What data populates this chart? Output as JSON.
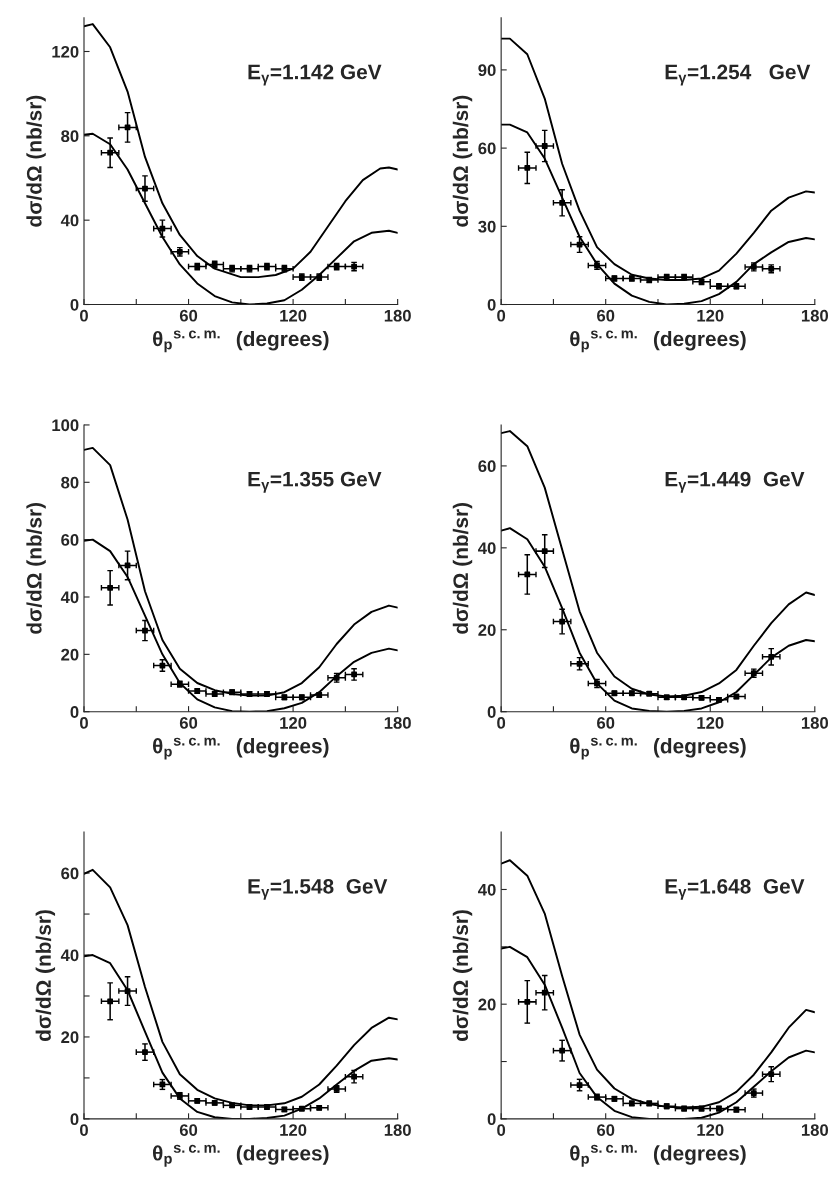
{
  "chart_data": [
    {
      "type": "line",
      "xlabel": "θ$_{p}$$^{s.c.m.}$  (degrees)",
      "ylabel": "dσ/dΩ (nb/sr)",
      "annotations": [
        "E$_{γ}$=1.142 GeV"
      ],
      "xlim": [
        0,
        180
      ],
      "xticks": [
        0,
        {
          "value": 30,
          "label": null
        },
        60,
        {
          "value": 90,
          "label": null
        },
        120,
        {
          "value": 150,
          "label": null
        },
        180
      ],
      "ylim": [
        0,
        136
      ],
      "yticks": [
        0,
        40,
        80,
        120
      ],
      "series": [
        {
          "type": "line",
          "color": "#000000",
          "x": [
            0,
            5,
            15,
            25,
            35,
            45,
            55,
            65,
            75,
            90,
            100,
            110,
            120,
            130,
            140,
            150,
            160,
            170,
            175,
            180
          ],
          "values": [
            132,
            133,
            122,
            101,
            70,
            48,
            33,
            23,
            17,
            13,
            13,
            14,
            17,
            25,
            37,
            49,
            59,
            64.5,
            65,
            64
          ]
        },
        {
          "type": "line",
          "color": "#000000",
          "x": [
            0,
            5,
            15,
            25,
            35,
            45,
            55,
            65,
            75,
            85,
            95,
            105,
            115,
            125,
            135,
            145,
            155,
            165,
            175,
            180
          ],
          "values": [
            80.5,
            81,
            76,
            64,
            48,
            32,
            19,
            10,
            4,
            1,
            0,
            0.5,
            2,
            7,
            14,
            22,
            30,
            34,
            35,
            34
          ]
        },
        {
          "type": "scatter",
          "color": "#000000",
          "marker": "square",
          "x": [
            15,
            25,
            35,
            45,
            55,
            65,
            75,
            85,
            95,
            105,
            115,
            125,
            135,
            145,
            155
          ],
          "values": [
            72,
            84,
            55,
            36,
            25,
            18,
            19,
            17,
            17,
            18,
            17,
            13,
            13,
            18,
            18
          ],
          "errors": [
            7,
            7,
            6,
            4,
            2,
            1.5,
            1.5,
            1.5,
            1.5,
            1.5,
            1.5,
            1.5,
            1.5,
            1.5,
            2
          ],
          "xerrors": [
            5,
            5,
            5,
            5,
            5,
            5,
            5,
            5,
            5,
            5,
            5,
            5,
            5,
            5,
            5
          ]
        }
      ]
    },
    {
      "type": "line",
      "xlabel": "θ$_{p}$$^{s.c.m.}$  (degrees)",
      "ylabel": "dσ/dΩ (nb/sr)",
      "annotations": [
        "E$_{γ}$=1.254   GeV"
      ],
      "xlim": [
        0,
        180
      ],
      "xticks": [
        0,
        {
          "value": 30,
          "label": null
        },
        60,
        {
          "value": 90,
          "label": null
        },
        120,
        {
          "value": 150,
          "label": null
        },
        180
      ],
      "ylim": [
        0,
        110
      ],
      "yticks": [
        0,
        30,
        60,
        90
      ],
      "series": [
        {
          "type": "line",
          "color": "#000000",
          "x": [
            0,
            5,
            15,
            25,
            35,
            45,
            55,
            65,
            75,
            85,
            95,
            105,
            115,
            125,
            135,
            145,
            155,
            165,
            175,
            180
          ],
          "values": [
            102,
            102,
            96,
            79,
            54,
            36,
            22,
            15.5,
            11.4,
            10,
            9.4,
            9.4,
            10,
            13,
            19.5,
            27.5,
            36,
            41,
            43.4,
            43
          ]
        },
        {
          "type": "line",
          "color": "#000000",
          "x": [
            0,
            5,
            15,
            25,
            35,
            45,
            55,
            65,
            75,
            85,
            95,
            105,
            115,
            125,
            135,
            145,
            155,
            165,
            175,
            180
          ],
          "values": [
            69,
            69,
            66,
            56,
            41,
            26,
            15.5,
            8,
            3.4,
            1,
            0,
            0.3,
            1.3,
            4,
            8.7,
            15.5,
            20,
            24,
            25.5,
            25
          ]
        },
        {
          "type": "scatter",
          "color": "#000000",
          "marker": "square",
          "x": [
            15,
            25,
            35,
            45,
            55,
            65,
            75,
            85,
            95,
            105,
            115,
            125,
            135,
            145,
            155
          ],
          "values": [
            52.4,
            60.8,
            39,
            23,
            15,
            10,
            10,
            9.4,
            10.5,
            10.5,
            8.7,
            7,
            7,
            14.4,
            13.7
          ],
          "errors": [
            6,
            6,
            5,
            3,
            1.5,
            1,
            1,
            1,
            1,
            1,
            1,
            1,
            1,
            1.5,
            1.5
          ],
          "xerrors": [
            5,
            5,
            5,
            5,
            5,
            5,
            5,
            5,
            5,
            5,
            5,
            5,
            5,
            5,
            5
          ]
        }
      ]
    },
    {
      "type": "line",
      "xlabel": "θ$_{p}$$^{s.c.m.}$  (degrees)",
      "ylabel": "dσ/dΩ (nb/sr)",
      "annotations": [
        "E$_{γ}$=1.355 GeV"
      ],
      "xlim": [
        0,
        180
      ],
      "xticks": [
        0,
        {
          "value": 30,
          "label": null
        },
        60,
        {
          "value": 90,
          "label": null
        },
        120,
        {
          "value": 150,
          "label": null
        },
        180
      ],
      "ylim": [
        0,
        100
      ],
      "yticks": [
        0,
        20,
        40,
        60,
        80,
        100
      ],
      "series": [
        {
          "type": "line",
          "color": "#000000",
          "x": [
            0,
            5,
            15,
            25,
            35,
            45,
            55,
            65,
            75,
            85,
            95,
            105,
            115,
            125,
            135,
            145,
            155,
            165,
            175,
            180
          ],
          "values": [
            91.3,
            92,
            86,
            67,
            42,
            25,
            15,
            10,
            7.5,
            6.2,
            5.6,
            5.6,
            6.8,
            10,
            15.5,
            23.6,
            30.4,
            34.8,
            37,
            36.3
          ]
        },
        {
          "type": "line",
          "color": "#000000",
          "x": [
            0,
            5,
            15,
            25,
            35,
            45,
            55,
            65,
            75,
            85,
            95,
            105,
            115,
            125,
            135,
            145,
            155,
            165,
            175,
            180
          ],
          "values": [
            59.6,
            60,
            56,
            47,
            33.5,
            20,
            10,
            4.3,
            1.5,
            0.2,
            0,
            0.2,
            1.2,
            3.1,
            6.8,
            12.4,
            17.4,
            20.5,
            22,
            21.4
          ]
        },
        {
          "type": "scatter",
          "color": "#000000",
          "marker": "square",
          "x": [
            15,
            25,
            35,
            45,
            55,
            65,
            75,
            85,
            95,
            105,
            115,
            125,
            135,
            145,
            155
          ],
          "values": [
            43.2,
            51,
            28.3,
            16.1,
            9.6,
            7.2,
            6.2,
            6.8,
            6.2,
            6.2,
            5,
            5,
            5.8,
            11.8,
            13
          ],
          "errors": [
            6,
            5,
            3.5,
            2,
            1,
            0.8,
            0.8,
            0.8,
            0.8,
            0.8,
            0.8,
            0.8,
            0.8,
            1.5,
            2
          ],
          "xerrors": [
            5,
            5,
            5,
            5,
            5,
            5,
            5,
            5,
            5,
            5,
            5,
            5,
            5,
            5,
            5
          ]
        }
      ]
    },
    {
      "type": "line",
      "xlabel": "θ$_{p}$$^{s.c.m.}$  (degrees)",
      "ylabel": "dσ/dΩ (nb/sr)",
      "annotations": [
        "E$_{γ}$=1.449  GeV"
      ],
      "xlim": [
        0,
        180
      ],
      "xticks": [
        0,
        {
          "value": 30,
          "label": null
        },
        60,
        {
          "value": 90,
          "label": null
        },
        120,
        {
          "value": 150,
          "label": null
        },
        180
      ],
      "ylim": [
        0,
        70
      ],
      "yticks": [
        0,
        20,
        40,
        60
      ],
      "series": [
        {
          "type": "line",
          "color": "#000000",
          "x": [
            0,
            5,
            15,
            25,
            35,
            45,
            55,
            65,
            75,
            85,
            95,
            105,
            115,
            125,
            135,
            145,
            155,
            165,
            175,
            180
          ],
          "values": [
            68,
            68.5,
            64.8,
            54.7,
            39.6,
            24.5,
            14.4,
            8.6,
            5.6,
            4.2,
            3.7,
            3.9,
            4.8,
            6.9,
            10.2,
            16.1,
            21.6,
            26.2,
            29.1,
            28.5
          ]
        },
        {
          "type": "line",
          "color": "#000000",
          "x": [
            0,
            5,
            15,
            25,
            35,
            45,
            55,
            65,
            75,
            85,
            95,
            105,
            115,
            125,
            135,
            145,
            155,
            165,
            175,
            180
          ],
          "values": [
            44.2,
            44.8,
            42.1,
            35.4,
            25.3,
            14.4,
            6.9,
            2.7,
            0.8,
            0.2,
            0,
            0.2,
            0.8,
            2.3,
            4.8,
            9,
            13.2,
            16.1,
            17.5,
            17.2
          ]
        },
        {
          "type": "scatter",
          "color": "#000000",
          "marker": "square",
          "x": [
            15,
            25,
            35,
            45,
            55,
            65,
            75,
            85,
            95,
            105,
            115,
            125,
            135,
            145,
            155
          ],
          "values": [
            33.5,
            39.2,
            22,
            11.7,
            6.9,
            4.5,
            4.5,
            4.4,
            3.5,
            3.5,
            3.4,
            2.9,
            3.7,
            9.4,
            13.4
          ],
          "errors": [
            4.8,
            4,
            3,
            1.5,
            1,
            0.5,
            0.5,
            0.5,
            0.5,
            0.5,
            0.5,
            0.5,
            0.5,
            1,
            2
          ],
          "xerrors": [
            5,
            5,
            5,
            5,
            5,
            5,
            5,
            5,
            5,
            5,
            5,
            5,
            5,
            5,
            5
          ]
        }
      ]
    },
    {
      "type": "line",
      "xlabel": "θ$_{p}$$^{s.c.m.}$  (degrees)",
      "ylabel": "dσ/dΩ (nb/sr)",
      "annotations": [
        "E$_{γ}$=1.548  GeV"
      ],
      "xlim": [
        0,
        180
      ],
      "xticks": [
        0,
        {
          "value": 30,
          "label": null
        },
        60,
        {
          "value": 90,
          "label": null
        },
        120,
        {
          "value": 150,
          "label": null
        },
        180
      ],
      "ylim": [
        0,
        70
      ],
      "yticks": [
        0,
        {
          "value": 10,
          "label": null
        },
        20,
        {
          "value": 30,
          "label": null
        },
        40,
        {
          "value": 50,
          "label": null
        },
        60
      ],
      "series": [
        {
          "type": "line",
          "color": "#000000",
          "x": [
            0,
            5,
            15,
            25,
            35,
            45,
            55,
            65,
            75,
            85,
            95,
            105,
            115,
            125,
            135,
            145,
            155,
            165,
            175,
            180
          ],
          "values": [
            59.8,
            60.8,
            56.5,
            47.3,
            32.2,
            18.8,
            10.9,
            7.1,
            5,
            3.9,
            3.3,
            3.3,
            3.8,
            5.4,
            8.4,
            13,
            18,
            22.2,
            24.7,
            24.3
          ]
        },
        {
          "type": "line",
          "color": "#000000",
          "x": [
            0,
            5,
            15,
            25,
            35,
            45,
            55,
            65,
            75,
            85,
            95,
            105,
            115,
            125,
            135,
            145,
            155,
            165,
            175,
            180
          ],
          "values": [
            39.7,
            40,
            38,
            31.4,
            21.3,
            11.3,
            5,
            1.7,
            0.4,
            0,
            0,
            0.2,
            0.8,
            2.5,
            5,
            8.4,
            11.7,
            14.2,
            14.8,
            14.5
          ]
        },
        {
          "type": "scatter",
          "color": "#000000",
          "marker": "square",
          "x": [
            15,
            25,
            35,
            45,
            55,
            65,
            75,
            85,
            95,
            105,
            115,
            125,
            135,
            145,
            155
          ],
          "values": [
            28.7,
            31.2,
            16.3,
            8.4,
            5.6,
            4.4,
            3.9,
            3.3,
            2.9,
            2.9,
            2.3,
            2.5,
            2.7,
            7.3,
            10.3
          ],
          "errors": [
            4.5,
            3.5,
            2,
            1.2,
            0.8,
            0.5,
            0.5,
            0.5,
            0.5,
            0.5,
            0.5,
            0.5,
            0.5,
            0.8,
            1.5
          ],
          "xerrors": [
            5,
            5,
            5,
            5,
            5,
            5,
            5,
            5,
            5,
            5,
            5,
            5,
            5,
            5,
            5
          ]
        }
      ]
    },
    {
      "type": "line",
      "xlabel": "θ$_{p}$$^{s.c.m.}$  (degrees)",
      "ylabel": "dσ/dΩ (nb/sr)",
      "annotations": [
        "E$_{γ}$=1.648  GeV"
      ],
      "xlim": [
        0,
        180
      ],
      "xticks": [
        0,
        {
          "value": 30,
          "label": null
        },
        60,
        {
          "value": 90,
          "label": null
        },
        120,
        {
          "value": 150,
          "label": null
        },
        180
      ],
      "ylim": [
        0,
        50
      ],
      "yticks": [
        0,
        {
          "value": 10,
          "label": null
        },
        20,
        {
          "value": 30,
          "label": null
        },
        40
      ],
      "series": [
        {
          "type": "line",
          "color": "#000000",
          "x": [
            0,
            5,
            15,
            25,
            35,
            45,
            55,
            65,
            75,
            85,
            95,
            105,
            115,
            125,
            135,
            145,
            155,
            165,
            175,
            180
          ],
          "values": [
            44.5,
            45.1,
            42.4,
            35.8,
            24.9,
            14.7,
            8.6,
            5.3,
            3.5,
            2.6,
            2.1,
            2,
            2.1,
            2.9,
            4.7,
            7.7,
            11.6,
            15.9,
            19,
            18.6
          ]
        },
        {
          "type": "line",
          "color": "#000000",
          "x": [
            0,
            5,
            15,
            25,
            35,
            45,
            55,
            65,
            75,
            85,
            95,
            105,
            115,
            125,
            135,
            145,
            155,
            165,
            175,
            180
          ],
          "values": [
            29.7,
            30,
            28.2,
            23.4,
            15.9,
            8,
            3.8,
            1.4,
            0.3,
            0,
            0,
            0,
            0.2,
            1.1,
            2.9,
            5.6,
            8.3,
            10.7,
            11.9,
            11.6
          ]
        },
        {
          "type": "scatter",
          "color": "#000000",
          "marker": "square",
          "x": [
            15,
            25,
            35,
            45,
            55,
            65,
            75,
            85,
            95,
            105,
            115,
            125,
            135,
            145,
            155
          ],
          "values": [
            20.4,
            22,
            11.9,
            5.9,
            3.8,
            3.5,
            2.7,
            2.7,
            2.2,
            1.8,
            1.8,
            1.8,
            1.6,
            4.5,
            7.8
          ],
          "errors": [
            3.7,
            3,
            1.8,
            1,
            0.5,
            0.4,
            0.4,
            0.4,
            0.4,
            0.4,
            0.4,
            0.4,
            0.4,
            0.7,
            1.3
          ],
          "xerrors": [
            5,
            5,
            5,
            5,
            5,
            5,
            5,
            5,
            5,
            5,
            5,
            5,
            5,
            5,
            5
          ]
        }
      ]
    }
  ]
}
